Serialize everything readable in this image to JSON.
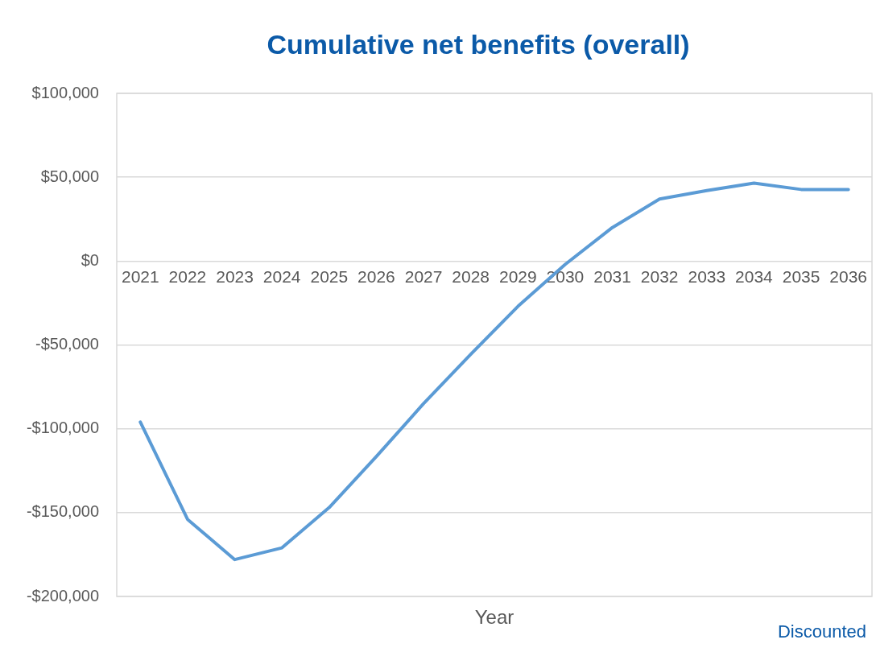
{
  "chart_data": {
    "type": "line",
    "title": "Cumulative net benefits (overall)",
    "xlabel": "Year",
    "categories": [
      "2021",
      "2022",
      "2023",
      "2024",
      "2025",
      "2026",
      "2027",
      "2028",
      "2029",
      "2030",
      "2031",
      "2032",
      "2033",
      "2034",
      "2035",
      "2036"
    ],
    "series": [
      {
        "color": "#5b9bd5",
        "values": [
          -96000,
          -154000,
          -178000,
          -171000,
          -147000,
          -116500,
          -85000,
          -55600,
          -27000,
          -2000,
          20000,
          37000,
          42000,
          46500,
          42700,
          42700
        ]
      }
    ],
    "ylim": [
      -200000,
      100000
    ],
    "yticks": [
      {
        "value": -200000,
        "label": "-$200,000"
      },
      {
        "value": -150000,
        "label": "-$150,000"
      },
      {
        "value": -100000,
        "label": "-$100,000"
      },
      {
        "value": -50000,
        "label": "-$50,000"
      },
      {
        "value": 0,
        "label": "$0"
      },
      {
        "value": 50000,
        "label": "$50,000"
      },
      {
        "value": 100000,
        "label": "$100,000"
      }
    ],
    "grid": "y",
    "legend": false,
    "marker": "none",
    "line_style": "solid",
    "annotations": [
      "Discounted"
    ]
  }
}
